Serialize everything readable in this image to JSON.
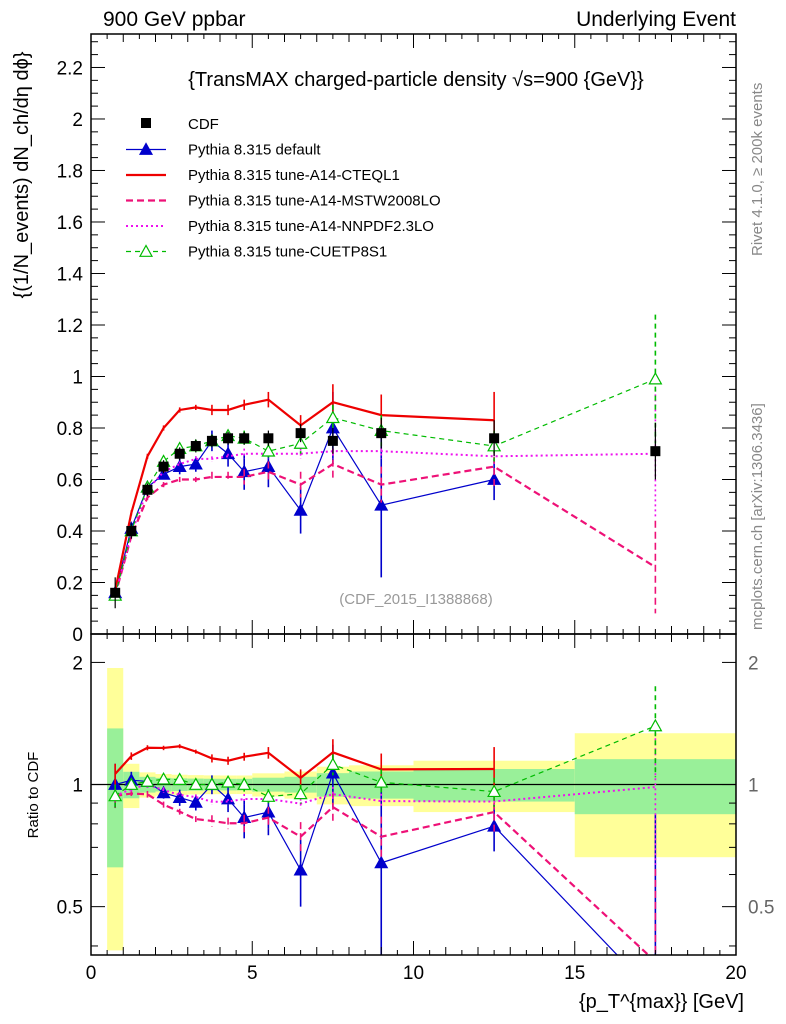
{
  "header": {
    "left": "900 GeV ppbar",
    "right": "Underlying Event",
    "side_top": "Rivet 4.1.0, ≥ 200k events",
    "side_bottom": "mcplots.cern.ch [arXiv:1306.3436]"
  },
  "chart_data": {
    "type": "line",
    "title": "{TransMAX charged-particle density √s=900 {GeV}}",
    "watermark": "(CDF_2015_I1388868)",
    "xlabel": "{p_T^{max}} [GeV]",
    "ylabel": "{(1/N_events) dN_ch/dη dϕ}",
    "ratio_ylabel": "Ratio to CDF",
    "xlim": [
      0,
      20
    ],
    "ylim": [
      0,
      2.33
    ],
    "ratio_ylim": [
      0.38,
      2.35
    ],
    "x_ticks": [
      "0",
      "5",
      "10",
      "15",
      "20"
    ],
    "y_ticks": [
      "0",
      "0.2",
      "0.4",
      "0.6",
      "0.8",
      "1",
      "1.2",
      "1.4",
      "1.6",
      "1.8",
      "2",
      "2.2"
    ],
    "ratio_ticks": [
      "0.5",
      "1",
      "2"
    ],
    "x": [
      0.75,
      1.25,
      1.75,
      2.25,
      2.75,
      3.25,
      3.75,
      4.25,
      4.75,
      5.5,
      6.5,
      7.5,
      9.0,
      12.5,
      17.5
    ],
    "x_bins": [
      [
        0.5,
        1
      ],
      [
        1,
        1.5
      ],
      [
        1.5,
        2
      ],
      [
        2,
        2.5
      ],
      [
        2.5,
        3
      ],
      [
        3,
        3.5
      ],
      [
        3.5,
        4
      ],
      [
        4,
        4.5
      ],
      [
        4.5,
        5
      ],
      [
        5,
        6
      ],
      [
        6,
        7
      ],
      [
        7,
        8
      ],
      [
        8,
        10
      ],
      [
        10,
        15
      ],
      [
        15,
        20
      ]
    ],
    "data": {
      "name": "CDF",
      "values": [
        0.16,
        0.4,
        0.56,
        0.65,
        0.7,
        0.73,
        0.75,
        0.76,
        0.76,
        0.76,
        0.78,
        0.75,
        0.78,
        0.76,
        0.71
      ],
      "band_stat": [
        0.06,
        0.03,
        0.025,
        0.025,
        0.025,
        0.025,
        0.025,
        0.025,
        0.025,
        0.03,
        0.035,
        0.05,
        0.06,
        0.07,
        0.11
      ],
      "band_total": [
        0.15,
        0.05,
        0.04,
        0.04,
        0.04,
        0.04,
        0.04,
        0.04,
        0.04,
        0.05,
        0.06,
        0.08,
        0.09,
        0.11,
        0.24
      ]
    },
    "series": [
      {
        "name": "Pythia 8.315 default",
        "color": "#0000cc",
        "style": "solid",
        "marker": "triangle-filled",
        "values": [
          0.16,
          0.41,
          0.57,
          0.62,
          0.65,
          0.66,
          0.75,
          0.7,
          0.63,
          0.65,
          0.48,
          0.8,
          0.5,
          0.6,
          0.0
        ],
        "errors": [
          0.02,
          0.02,
          0.02,
          0.02,
          0.03,
          0.03,
          0.04,
          0.05,
          0.07,
          0.08,
          0.09,
          0.14,
          0.28,
          0.08,
          0.6
        ]
      },
      {
        "name": "Pythia 8.315 tune-A14-CTEQL1",
        "color": "#ee0000",
        "style": "solid-thick",
        "marker": "none",
        "values": [
          0.17,
          0.47,
          0.69,
          0.8,
          0.87,
          0.88,
          0.87,
          0.87,
          0.89,
          0.91,
          0.81,
          0.9,
          0.85,
          0.83,
          null
        ],
        "errors": [
          0.01,
          0.01,
          0.01,
          0.01,
          0.01,
          0.01,
          0.02,
          0.02,
          0.02,
          0.03,
          0.04,
          0.07,
          0.08,
          0.11,
          null
        ]
      },
      {
        "name": "Pythia 8.315 tune-A14-MSTW2008LO",
        "color": "#ee1177",
        "style": "dashed",
        "marker": "none",
        "values": [
          0.15,
          0.38,
          0.53,
          0.58,
          0.6,
          0.6,
          0.61,
          0.61,
          0.61,
          0.63,
          0.58,
          0.66,
          0.58,
          0.65,
          0.26
        ],
        "errors": [
          0.01,
          0.01,
          0.01,
          0.01,
          0.01,
          0.01,
          0.02,
          0.02,
          0.03,
          0.04,
          0.05,
          0.06,
          0.07,
          0.08,
          0.18
        ]
      },
      {
        "name": "Pythia 8.315 tune-A14-NNPDF2.3LO",
        "color": "#ee11ee",
        "style": "dotted",
        "marker": "none",
        "values": [
          0.15,
          0.39,
          0.56,
          0.63,
          0.66,
          0.68,
          0.68,
          0.69,
          0.7,
          0.7,
          0.7,
          0.71,
          0.71,
          0.69,
          0.7
        ],
        "errors": [
          0.01,
          0.01,
          0.01,
          0.01,
          0.01,
          0.01,
          0.01,
          0.01,
          0.02,
          0.02,
          0.02,
          0.03,
          0.03,
          0.03,
          0.25
        ]
      },
      {
        "name": "Pythia 8.315 tune-CUETP8S1",
        "color": "#00bb00",
        "style": "dashed-thin",
        "marker": "triangle-open",
        "values": [
          0.15,
          0.4,
          0.57,
          0.67,
          0.72,
          0.73,
          0.75,
          0.77,
          0.76,
          0.71,
          0.74,
          0.84,
          0.79,
          0.73,
          0.99
        ],
        "errors": [
          0.01,
          0.01,
          0.01,
          0.01,
          0.02,
          0.02,
          0.02,
          0.02,
          0.03,
          0.03,
          0.04,
          0.05,
          0.06,
          0.06,
          0.25
        ]
      }
    ]
  }
}
